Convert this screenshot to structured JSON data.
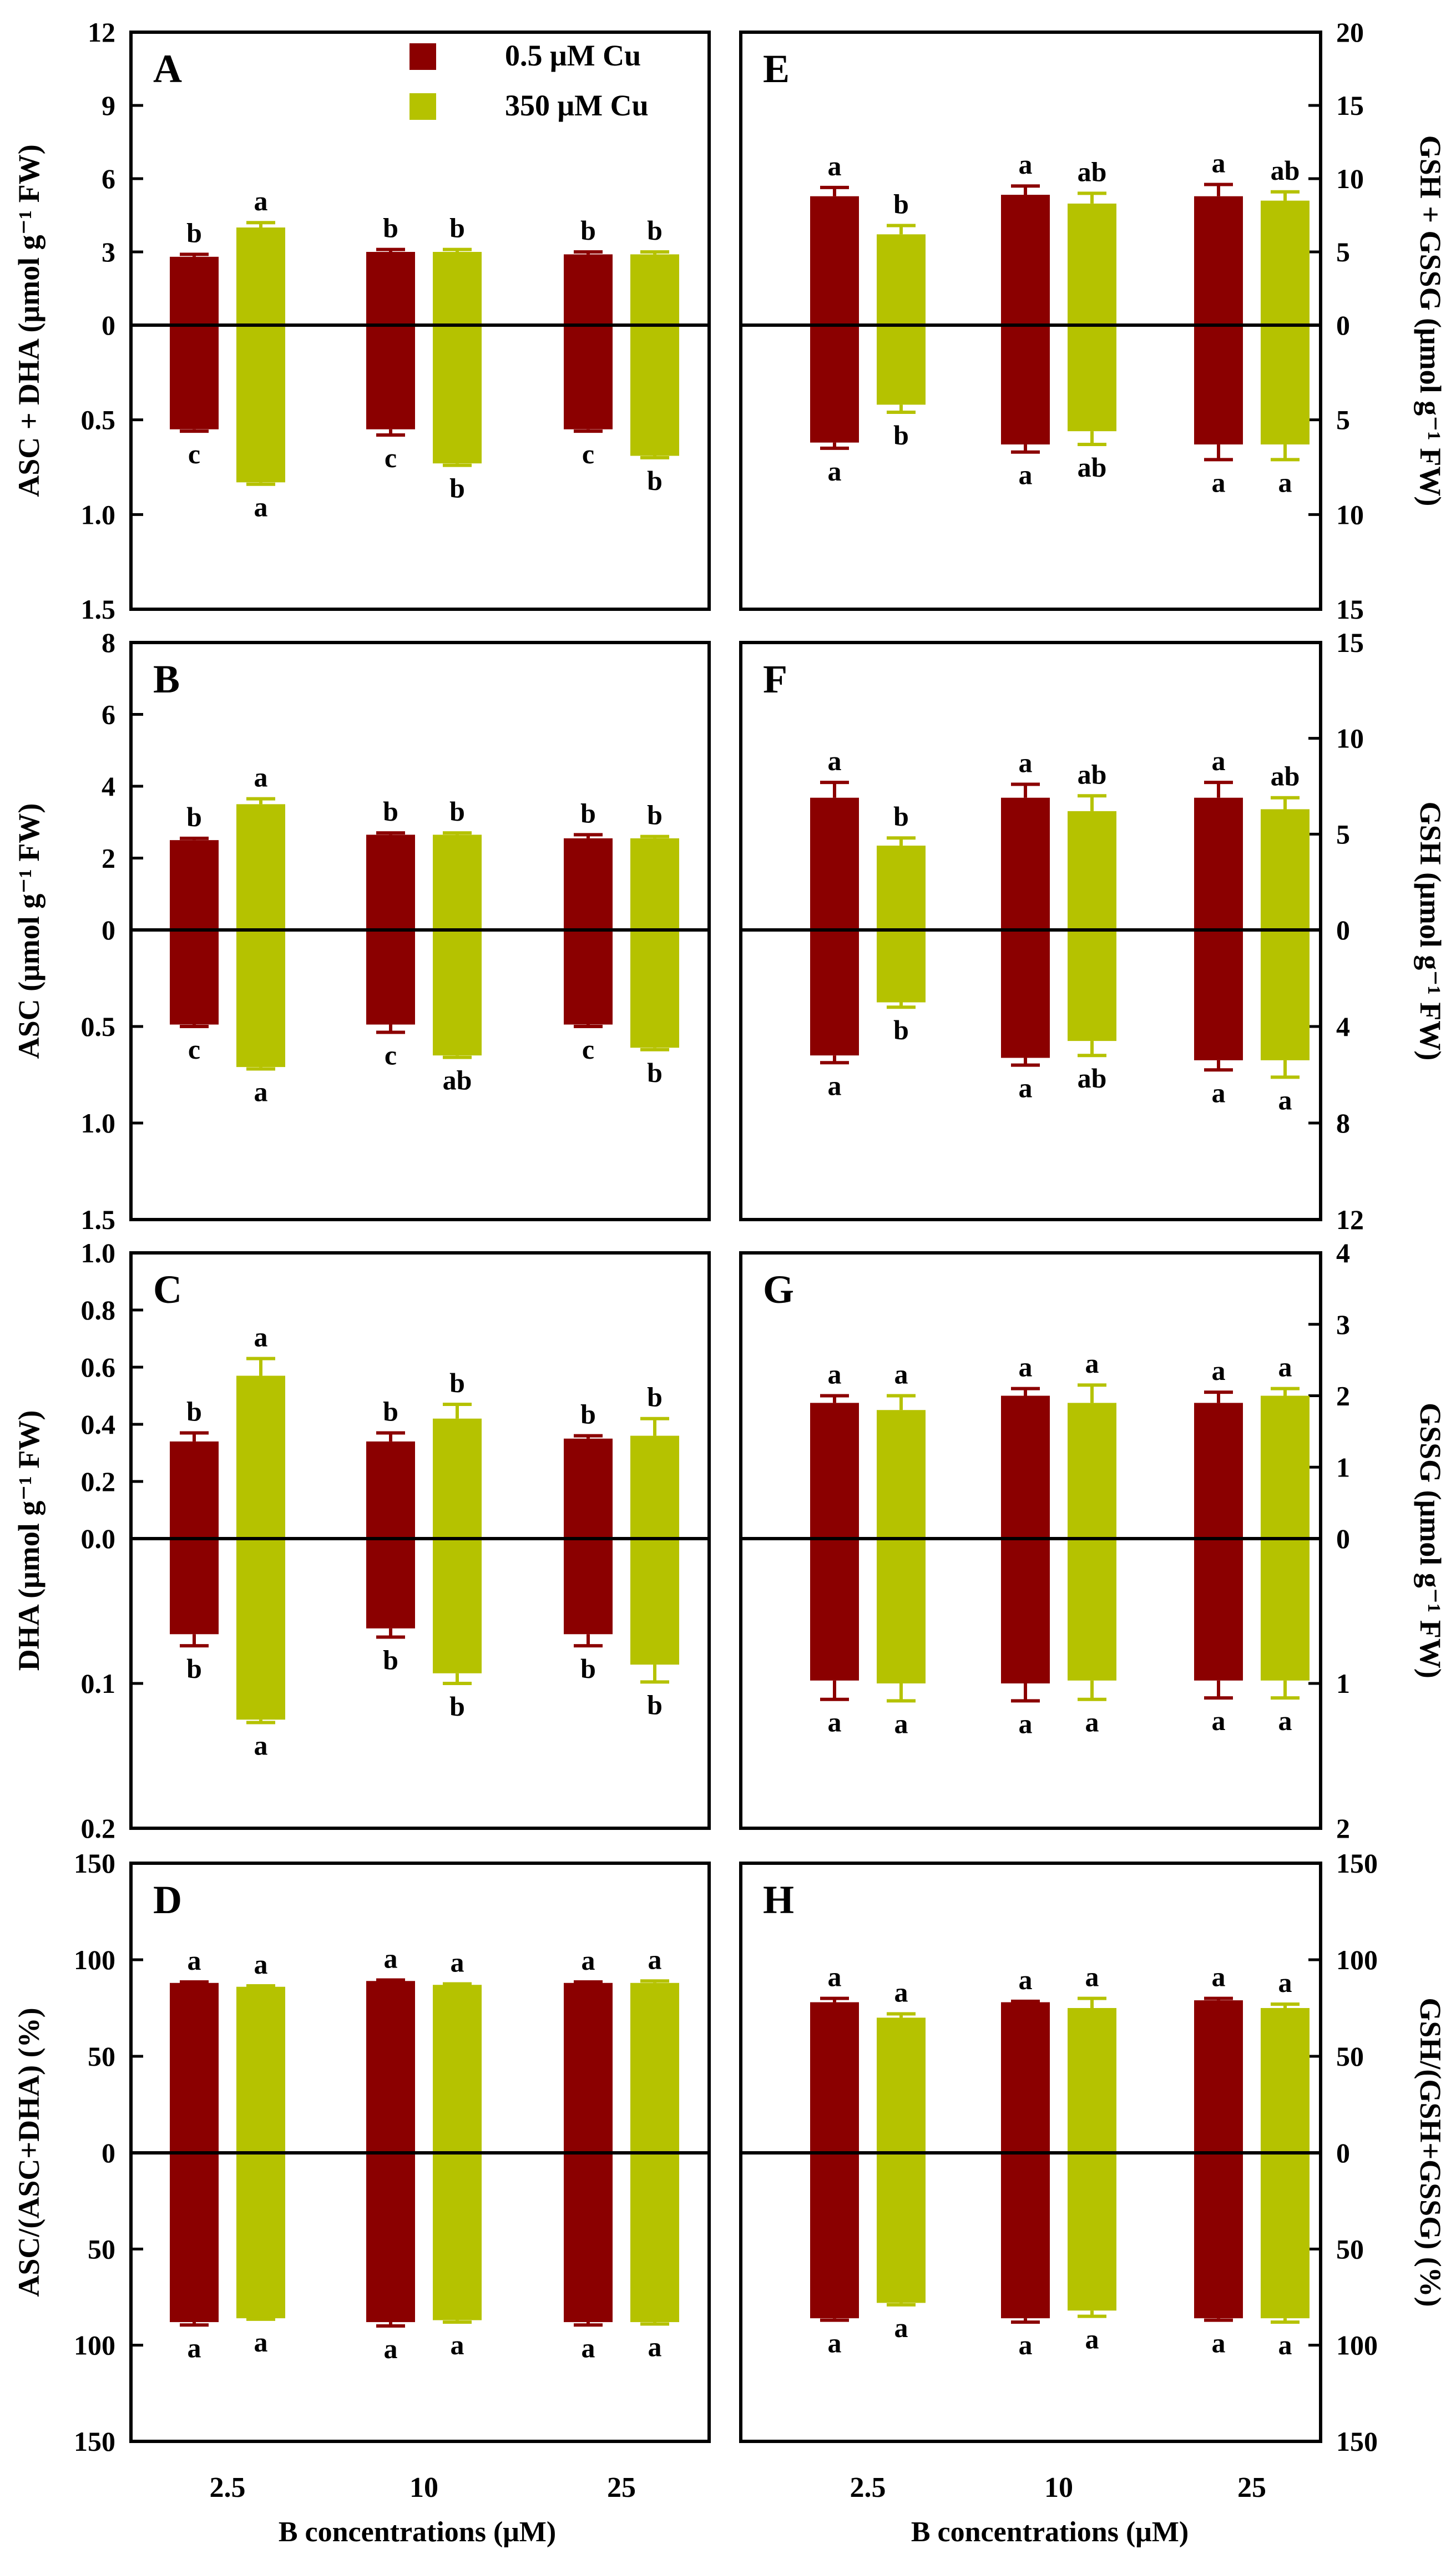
{
  "colors": {
    "low_cu": "#8b0000",
    "high_cu": "#b5c200",
    "axis": "#000000"
  },
  "legend": {
    "items": [
      {
        "label": "0.5 μM Cu",
        "color": "#8b0000"
      },
      {
        "label": "350 μM Cu",
        "color": "#b5c200"
      }
    ]
  },
  "chart_data": [
    {
      "type": "bar",
      "panel": "A",
      "ylabel": "ASC + DHA (μmol g⁻¹ FW)",
      "top_ticks": [
        "0",
        "3",
        "6",
        "9",
        "12"
      ],
      "top_tick_values": [
        0,
        3,
        6,
        9,
        12
      ],
      "top_ylim": [
        0,
        12
      ],
      "bottom_ticks": [
        "0.5",
        "1.0",
        "1.5"
      ],
      "bottom_tick_values": [
        0.5,
        1.0,
        1.5
      ],
      "bottom_ylim": [
        0,
        1.5
      ],
      "top_series": [
        {
          "name": "0.5 μM Cu",
          "values": [
            2.8,
            3.0,
            2.9
          ],
          "errors": [
            0.1,
            0.1,
            0.1
          ],
          "letters": [
            "b",
            "b",
            "b"
          ]
        },
        {
          "name": "350 μM Cu",
          "values": [
            4.0,
            3.0,
            2.9
          ],
          "errors": [
            0.2,
            0.1,
            0.1
          ],
          "letters": [
            "a",
            "b",
            "b"
          ]
        }
      ],
      "bottom_series": [
        {
          "name": "0.5 μM Cu",
          "values": [
            0.55,
            0.55,
            0.55
          ],
          "errors": [
            0.01,
            0.03,
            0.01
          ],
          "letters": [
            "c",
            "c",
            "c"
          ]
        },
        {
          "name": "350 μM Cu",
          "values": [
            0.83,
            0.73,
            0.69
          ],
          "errors": [
            0.01,
            0.01,
            0.01
          ],
          "letters": [
            "a",
            "b",
            "b"
          ]
        }
      ]
    },
    {
      "type": "bar",
      "panel": "B",
      "ylabel": "ASC (μmol g⁻¹ FW)",
      "top_ticks": [
        "0",
        "2",
        "4",
        "6",
        "8"
      ],
      "top_tick_values": [
        0,
        2,
        4,
        6,
        8
      ],
      "top_ylim": [
        0,
        8
      ],
      "bottom_ticks": [
        "0.5",
        "1.0",
        "1.5"
      ],
      "bottom_tick_values": [
        0.5,
        1.0,
        1.5
      ],
      "bottom_ylim": [
        0,
        1.5
      ],
      "top_series": [
        {
          "name": "0.5 μM Cu",
          "values": [
            2.5,
            2.65,
            2.55
          ],
          "errors": [
            0.05,
            0.05,
            0.1
          ],
          "letters": [
            "b",
            "b",
            "b"
          ]
        },
        {
          "name": "350 μM Cu",
          "values": [
            3.5,
            2.65,
            2.55
          ],
          "errors": [
            0.15,
            0.05,
            0.05
          ],
          "letters": [
            "a",
            "b",
            "b"
          ]
        }
      ],
      "bottom_series": [
        {
          "name": "0.5 μM Cu",
          "values": [
            0.49,
            0.49,
            0.49
          ],
          "errors": [
            0.01,
            0.04,
            0.01
          ],
          "letters": [
            "c",
            "c",
            "c"
          ]
        },
        {
          "name": "350 μM Cu",
          "values": [
            0.71,
            0.65,
            0.61
          ],
          "errors": [
            0.01,
            0.01,
            0.01
          ],
          "letters": [
            "a",
            "ab",
            "b"
          ]
        }
      ]
    },
    {
      "type": "bar",
      "panel": "C",
      "ylabel": "DHA (μmol g⁻¹ FW)",
      "top_ticks": [
        "0.0",
        "0.2",
        "0.4",
        "0.6",
        "0.8",
        "1.0"
      ],
      "top_tick_values": [
        0,
        0.2,
        0.4,
        0.6,
        0.8,
        1.0
      ],
      "top_ylim": [
        0,
        1.0
      ],
      "bottom_ticks": [
        "0.1",
        "0.2"
      ],
      "bottom_tick_values": [
        0.1,
        0.2
      ],
      "bottom_ylim": [
        0,
        0.2
      ],
      "top_series": [
        {
          "name": "0.5 μM Cu",
          "values": [
            0.34,
            0.34,
            0.35
          ],
          "errors": [
            0.03,
            0.03,
            0.01
          ],
          "letters": [
            "b",
            "b",
            "b"
          ]
        },
        {
          "name": "350 μM Cu",
          "values": [
            0.57,
            0.42,
            0.36
          ],
          "errors": [
            0.06,
            0.05,
            0.06
          ],
          "letters": [
            "a",
            "b",
            "b"
          ]
        }
      ],
      "bottom_series": [
        {
          "name": "0.5 μM Cu",
          "values": [
            0.066,
            0.062,
            0.066
          ],
          "errors": [
            0.008,
            0.006,
            0.008
          ],
          "letters": [
            "b",
            "b",
            "b"
          ]
        },
        {
          "name": "350 μM Cu",
          "values": [
            0.125,
            0.093,
            0.087
          ],
          "errors": [
            0.002,
            0.007,
            0.012
          ],
          "letters": [
            "a",
            "b",
            "b"
          ]
        }
      ]
    },
    {
      "type": "bar",
      "panel": "D",
      "ylabel": "ASC/(ASC+DHA) (%)",
      "top_ticks": [
        "0",
        "50",
        "100",
        "150"
      ],
      "top_tick_values": [
        0,
        50,
        100,
        150
      ],
      "top_ylim": [
        0,
        150
      ],
      "bottom_ticks": [
        "50",
        "100",
        "150"
      ],
      "bottom_tick_values": [
        50,
        100,
        150
      ],
      "bottom_ylim": [
        0,
        150
      ],
      "top_series": [
        {
          "name": "0.5 μM Cu",
          "values": [
            88,
            89,
            88
          ],
          "errors": [
            0.5,
            0.5,
            0.5
          ],
          "letters": [
            "a",
            "a",
            "a"
          ]
        },
        {
          "name": "350 μM Cu",
          "values": [
            86,
            87,
            88
          ],
          "errors": [
            0.5,
            0.5,
            1.0
          ],
          "letters": [
            "a",
            "a",
            "a"
          ]
        }
      ],
      "bottom_series": [
        {
          "name": "0.5 μM Cu",
          "values": [
            88,
            88,
            88
          ],
          "errors": [
            1.5,
            2.0,
            1.5
          ],
          "letters": [
            "a",
            "a",
            "a"
          ]
        },
        {
          "name": "350 μM Cu",
          "values": [
            86,
            87,
            88
          ],
          "errors": [
            0.5,
            1.0,
            1.0
          ],
          "letters": [
            "a",
            "a",
            "a"
          ]
        }
      ]
    },
    {
      "type": "bar",
      "panel": "E",
      "ylabel": "GSH + GSSG (μmol g⁻¹ FW)",
      "top_ticks": [
        "0",
        "5",
        "10",
        "15",
        "20"
      ],
      "top_tick_values": [
        0,
        5,
        10,
        15,
        20
      ],
      "top_ylim": [
        0,
        20
      ],
      "bottom_ticks": [
        "5",
        "10",
        "15"
      ],
      "bottom_tick_values": [
        5,
        10,
        15
      ],
      "bottom_ylim": [
        0,
        15
      ],
      "top_series": [
        {
          "name": "0.5 μM Cu",
          "values": [
            8.8,
            8.9,
            8.8
          ],
          "errors": [
            0.6,
            0.6,
            0.8
          ],
          "letters": [
            "a",
            "a",
            "a"
          ]
        },
        {
          "name": "350 μM Cu",
          "values": [
            6.2,
            8.3,
            8.5
          ],
          "errors": [
            0.6,
            0.7,
            0.6
          ],
          "letters": [
            "b",
            "ab",
            "ab"
          ]
        }
      ],
      "bottom_series": [
        {
          "name": "0.5 μM Cu",
          "values": [
            6.2,
            6.3,
            6.3
          ],
          "errors": [
            0.3,
            0.4,
            0.8
          ],
          "letters": [
            "a",
            "a",
            "a"
          ]
        },
        {
          "name": "350 μM Cu",
          "values": [
            4.2,
            5.6,
            6.3
          ],
          "errors": [
            0.4,
            0.7,
            0.8
          ],
          "letters": [
            "b",
            "ab",
            "a"
          ]
        }
      ]
    },
    {
      "type": "bar",
      "panel": "F",
      "ylabel": "GSH (μmol g⁻¹ FW)",
      "top_ticks": [
        "0",
        "5",
        "10",
        "15"
      ],
      "top_tick_values": [
        0,
        5,
        10,
        15
      ],
      "top_ylim": [
        0,
        15
      ],
      "bottom_ticks": [
        "4",
        "8",
        "12"
      ],
      "bottom_tick_values": [
        4,
        8,
        12
      ],
      "bottom_ylim": [
        0,
        12
      ],
      "top_series": [
        {
          "name": "0.5 μM Cu",
          "values": [
            6.9,
            6.9,
            6.9
          ],
          "errors": [
            0.8,
            0.7,
            0.8
          ],
          "letters": [
            "a",
            "a",
            "a"
          ]
        },
        {
          "name": "350 μM Cu",
          "values": [
            4.4,
            6.2,
            6.3
          ],
          "errors": [
            0.4,
            0.8,
            0.6
          ],
          "letters": [
            "b",
            "ab",
            "ab"
          ]
        }
      ],
      "bottom_series": [
        {
          "name": "0.5 μM Cu",
          "values": [
            5.2,
            5.3,
            5.4
          ],
          "errors": [
            0.3,
            0.3,
            0.4
          ],
          "letters": [
            "a",
            "a",
            "a"
          ]
        },
        {
          "name": "350 μM Cu",
          "values": [
            3.0,
            4.6,
            5.4
          ],
          "errors": [
            0.2,
            0.6,
            0.7
          ],
          "letters": [
            "b",
            "ab",
            "a"
          ]
        }
      ]
    },
    {
      "type": "bar",
      "panel": "G",
      "ylabel": "GSSG (μmol g⁻¹ FW)",
      "top_ticks": [
        "0",
        "1",
        "2",
        "3",
        "4"
      ],
      "top_tick_values": [
        0,
        1,
        2,
        3,
        4
      ],
      "top_ylim": [
        0,
        4
      ],
      "bottom_ticks": [
        "1",
        "2"
      ],
      "bottom_tick_values": [
        1,
        2
      ],
      "bottom_ylim": [
        0,
        2
      ],
      "top_series": [
        {
          "name": "0.5 μM Cu",
          "values": [
            1.9,
            2.0,
            1.9
          ],
          "errors": [
            0.1,
            0.1,
            0.15
          ],
          "letters": [
            "a",
            "a",
            "a"
          ]
        },
        {
          "name": "350 μM Cu",
          "values": [
            1.8,
            1.9,
            2.0
          ],
          "errors": [
            0.2,
            0.25,
            0.1
          ],
          "letters": [
            "a",
            "a",
            "a"
          ]
        }
      ],
      "bottom_series": [
        {
          "name": "0.5 μM Cu",
          "values": [
            0.98,
            1.0,
            0.98
          ],
          "errors": [
            0.13,
            0.12,
            0.12
          ],
          "letters": [
            "a",
            "a",
            "a"
          ]
        },
        {
          "name": "350 μM Cu",
          "values": [
            1.0,
            0.98,
            0.98
          ],
          "errors": [
            0.12,
            0.13,
            0.12
          ],
          "letters": [
            "a",
            "a",
            "a"
          ]
        }
      ]
    },
    {
      "type": "bar",
      "panel": "H",
      "ylabel": "GSH/(GSH+GSSG) (%)",
      "top_ticks": [
        "0",
        "50",
        "100",
        "150"
      ],
      "top_tick_values": [
        0,
        50,
        100,
        150
      ],
      "top_ylim": [
        0,
        150
      ],
      "bottom_ticks": [
        "50",
        "100",
        "150"
      ],
      "bottom_tick_values": [
        50,
        100,
        150
      ],
      "bottom_ylim": [
        0,
        150
      ],
      "top_series": [
        {
          "name": "0.5 μM Cu",
          "values": [
            78,
            78,
            79
          ],
          "errors": [
            2.0,
            0.5,
            1.0
          ],
          "letters": [
            "a",
            "a",
            "a"
          ]
        },
        {
          "name": "350 μM Cu",
          "values": [
            70,
            75,
            75
          ],
          "errors": [
            2.0,
            5.0,
            2.0
          ],
          "letters": [
            "a",
            "a",
            "a"
          ]
        }
      ],
      "bottom_series": [
        {
          "name": "0.5 μM Cu",
          "values": [
            86,
            86,
            86
          ],
          "errors": [
            1.0,
            2.0,
            1.0
          ],
          "letters": [
            "a",
            "a",
            "a"
          ]
        },
        {
          "name": "350 μM Cu",
          "values": [
            78,
            82,
            86
          ],
          "errors": [
            1.0,
            3.0,
            2.0
          ],
          "letters": [
            "a",
            "a",
            "a"
          ]
        }
      ]
    }
  ],
  "x_categories": [
    "2.5",
    "10",
    "25"
  ],
  "x_axis_titles": [
    "B concentrations (μM)",
    "B concentrations (μM)"
  ]
}
